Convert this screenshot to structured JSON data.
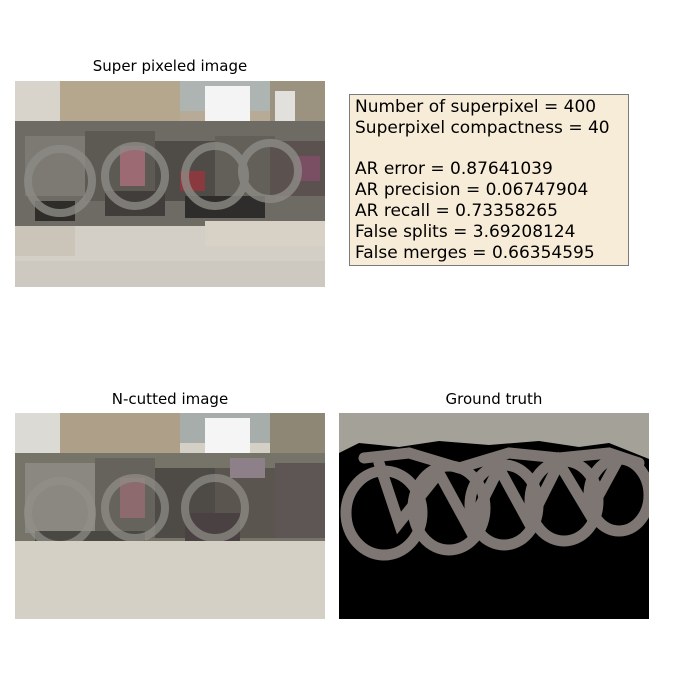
{
  "panels": {
    "superpixel": {
      "title": "Super pixeled image"
    },
    "ncut": {
      "title": "N-cutted image"
    },
    "ground_truth": {
      "title": "Ground truth"
    }
  },
  "stats": {
    "line1": "Number of superpixel = 400",
    "line2": "Superpixel compactness = 40",
    "line3": "AR error = 0.87641039",
    "line4": "AR precision = 0.06747904",
    "line5": "AR recall = 0.73358265",
    "line6": "False splits = 3.69208124",
    "line7": "False merges = 0.66354595"
  },
  "colors": {
    "info_bg": "#f7ecd8",
    "gt_background": "#000000",
    "gt_sky": "#a3a198",
    "gt_bikes": "#7d7672"
  }
}
